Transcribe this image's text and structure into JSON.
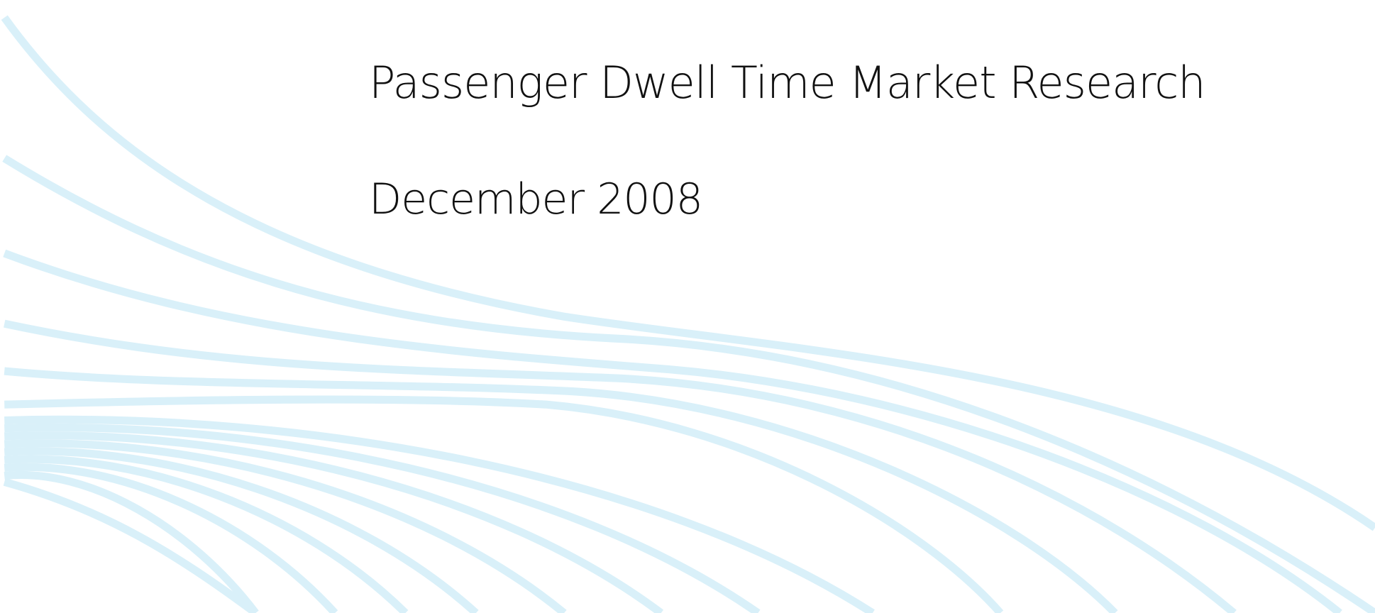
{
  "title": "Passenger Dwell Time Market Research",
  "date": "December 2008"
}
